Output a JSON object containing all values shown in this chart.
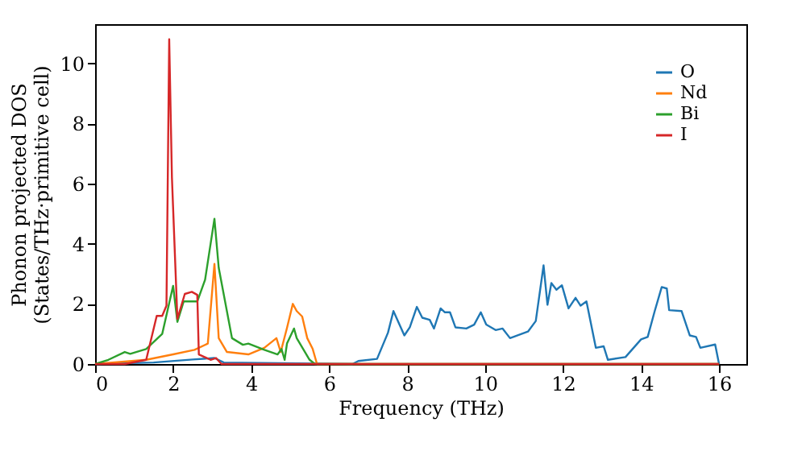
{
  "chart_data": {
    "type": "line",
    "xlabel": "Frequency (THz)",
    "ylabel": "Phonon projected DOS\n(States/THz·primitive cell)",
    "xlim": [
      0,
      16.7
    ],
    "ylim": [
      0,
      11.3
    ],
    "xticks": [
      0,
      2,
      4,
      6,
      8,
      10,
      12,
      14,
      16
    ],
    "yticks": [
      0,
      2,
      4,
      6,
      8,
      10
    ],
    "grid": false,
    "legend": "top right",
    "line_style": "solid",
    "marker": "none",
    "series": [
      {
        "name": "O",
        "color": "#1f77b4",
        "x": [
          0,
          1.5,
          2.5,
          3.06,
          3.3,
          6.6,
          6.75,
          7.23,
          7.51,
          7.65,
          7.93,
          8.07,
          8.25,
          8.39,
          8.58,
          8.69,
          8.86,
          8.97,
          9.1,
          9.24,
          9.52,
          9.72,
          9.89,
          10.03,
          10.27,
          10.45,
          10.64,
          11.1,
          11.3,
          11.5,
          11.6,
          11.7,
          11.83,
          11.97,
          12.14,
          12.32,
          12.45,
          12.6,
          12.84,
          13.04,
          13.15,
          13.6,
          14.0,
          14.17,
          14.35,
          14.53,
          14.66,
          14.72,
          15.04,
          15.25,
          15.41,
          15.52,
          15.9,
          16.0
        ],
        "values": [
          0,
          0.05,
          0.15,
          0.2,
          0.05,
          0,
          0.1,
          0.17,
          1.04,
          1.76,
          0.95,
          1.22,
          1.9,
          1.54,
          1.47,
          1.18,
          1.85,
          1.72,
          1.72,
          1.22,
          1.18,
          1.31,
          1.72,
          1.31,
          1.13,
          1.18,
          0.86,
          1.08,
          1.43,
          3.28,
          1.97,
          2.69,
          2.47,
          2.62,
          1.85,
          2.2,
          1.94,
          2.08,
          0.54,
          0.59,
          0.14,
          0.23,
          0.82,
          0.9,
          1.76,
          2.56,
          2.51,
          1.79,
          1.76,
          0.95,
          0.9,
          0.54,
          0.65,
          0
        ]
      },
      {
        "name": "Nd",
        "color": "#ff7f0e",
        "x": [
          0,
          1.31,
          2.0,
          2.55,
          2.89,
          3.06,
          3.17,
          3.38,
          3.93,
          4.34,
          4.65,
          4.76,
          4.92,
          5.07,
          5.17,
          5.31,
          5.44,
          5.58,
          5.69,
          16.0
        ],
        "values": [
          0,
          0.14,
          0.32,
          0.47,
          0.68,
          3.33,
          0.86,
          0.4,
          0.32,
          0.54,
          0.86,
          0.4,
          1.2,
          2.0,
          1.76,
          1.58,
          0.86,
          0.5,
          0,
          0
        ]
      },
      {
        "name": "Bi",
        "color": "#2ca02c",
        "x": [
          0,
          0.34,
          0.76,
          0.9,
          1.31,
          1.72,
          2.0,
          2.11,
          2.27,
          2.62,
          2.82,
          3.06,
          3.17,
          3.51,
          3.79,
          3.93,
          4.34,
          4.68,
          4.78,
          4.86,
          4.92,
          5.1,
          5.17,
          5.5,
          5.64,
          16.0
        ],
        "values": [
          0,
          0.14,
          0.4,
          0.34,
          0.5,
          1.0,
          2.6,
          1.4,
          2.08,
          2.08,
          2.8,
          4.83,
          3.2,
          0.86,
          0.64,
          0.68,
          0.47,
          0.32,
          0.5,
          0.14,
          0.68,
          1.18,
          0.86,
          0.14,
          0,
          0
        ]
      },
      {
        "name": "I",
        "color": "#d62728",
        "x": [
          0,
          0.76,
          1.31,
          1.58,
          1.72,
          1.83,
          1.9,
          1.97,
          2.11,
          2.3,
          2.48,
          2.62,
          2.66,
          2.96,
          3.1,
          3.24,
          3.9,
          16.0
        ],
        "values": [
          0,
          0,
          0.14,
          1.6,
          1.6,
          1.94,
          10.8,
          6.2,
          1.5,
          2.33,
          2.4,
          2.3,
          0.32,
          0.14,
          0.2,
          0,
          0,
          0
        ]
      }
    ]
  }
}
